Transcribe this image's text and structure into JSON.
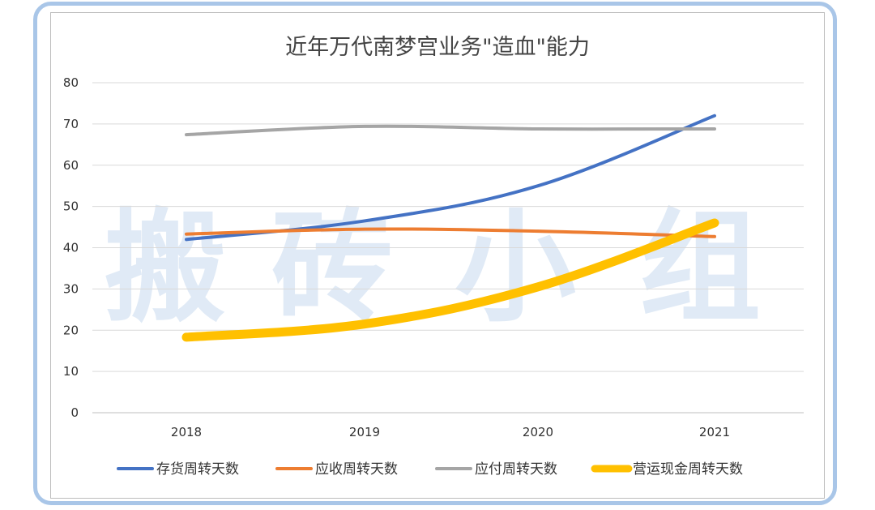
{
  "chart_data": {
    "type": "line",
    "title": "近年万代南梦宫业务\"造血\"能力",
    "categories": [
      "2018",
      "2019",
      "2020",
      "2021"
    ],
    "ylim": [
      0,
      80
    ],
    "yticks": [
      0,
      10,
      20,
      30,
      40,
      50,
      60,
      70,
      80
    ],
    "grid": true,
    "legend_position": "bottom",
    "series": [
      {
        "name": "存货周转天数",
        "values": [
          42,
          46.5,
          55,
          72
        ],
        "color": "#4472c4"
      },
      {
        "name": "应收周转天数",
        "values": [
          43.3,
          44.5,
          44,
          42.7
        ],
        "color": "#ed7d31"
      },
      {
        "name": "应付周转天数",
        "values": [
          67.4,
          69.4,
          68.8,
          68.8
        ],
        "color": "#a5a5a5"
      },
      {
        "name": "营运现金周转天数",
        "values": [
          18.3,
          21.5,
          30.5,
          46
        ],
        "color": "#ffc000"
      }
    ]
  },
  "watermark": "搬砖小组"
}
